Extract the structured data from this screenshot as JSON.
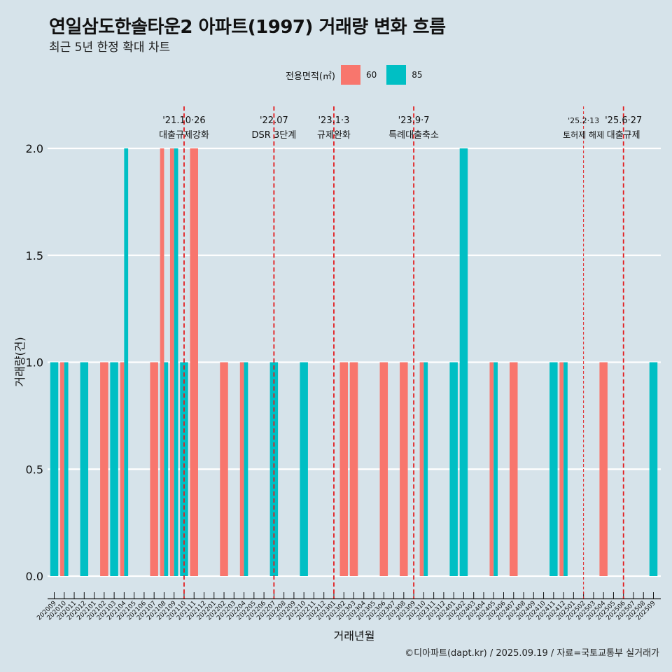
{
  "title": "연일삼도한솔타운2 아파트(1997) 거래량 변화 흐름",
  "subtitle": "최근 5년 한정 확대 차트",
  "caption": "©디아파트(dapt.kr) / 2025.09.19 / 자료=국토교통부 실거래가",
  "legend": {
    "title": "전용면적(㎡)",
    "items": [
      {
        "label": "60",
        "color": "#f8766d"
      },
      {
        "label": "85",
        "color": "#00bfc4"
      }
    ]
  },
  "chart_data": {
    "type": "bar",
    "xlabel": "거래년월",
    "ylabel": "거래량(건)",
    "ylim": [
      0,
      2
    ],
    "yticks": [
      "0.0",
      "0.5",
      "1.0",
      "1.5",
      "2.0"
    ],
    "grid": true,
    "legend_position": "top",
    "categories": [
      "202009",
      "202010",
      "202011",
      "202012",
      "202101",
      "202102",
      "202103",
      "202104",
      "202105",
      "202106",
      "202107",
      "202108",
      "202109",
      "202110",
      "202111",
      "202112",
      "202201",
      "202202",
      "202203",
      "202204",
      "202205",
      "202206",
      "202207",
      "202208",
      "202209",
      "202210",
      "202211",
      "202212",
      "202301",
      "202302",
      "202303",
      "202304",
      "202305",
      "202306",
      "202307",
      "202308",
      "202309",
      "202310",
      "202311",
      "202312",
      "202401",
      "202402",
      "202403",
      "202404",
      "202405",
      "202406",
      "202407",
      "202408",
      "202409",
      "202410",
      "202411",
      "202412",
      "202501",
      "202502",
      "202503",
      "202504",
      "202505",
      "202506",
      "202507",
      "202508",
      "202509"
    ],
    "series": [
      {
        "name": "60",
        "color": "#f8766d",
        "values": [
          0,
          1,
          0,
          0,
          0,
          1,
          0,
          1,
          0,
          0,
          1,
          2,
          2,
          0,
          2,
          0,
          0,
          1,
          0,
          1,
          0,
          0,
          0,
          0,
          0,
          0,
          0,
          0,
          0,
          1,
          1,
          0,
          0,
          1,
          0,
          1,
          0,
          1,
          0,
          0,
          0,
          0,
          0,
          0,
          1,
          0,
          1,
          0,
          0,
          0,
          0,
          1,
          0,
          0,
          0,
          1,
          0,
          0,
          0,
          0,
          0
        ]
      },
      {
        "name": "85",
        "color": "#00bfc4",
        "values": [
          1,
          1,
          0,
          1,
          0,
          0,
          1,
          2,
          0,
          0,
          0,
          1,
          2,
          1,
          0,
          0,
          0,
          0,
          0,
          1,
          0,
          0,
          1,
          0,
          0,
          1,
          0,
          0,
          0,
          0,
          0,
          0,
          0,
          0,
          0,
          0,
          0,
          1,
          0,
          0,
          1,
          2,
          0,
          0,
          1,
          0,
          0,
          0,
          0,
          0,
          1,
          1,
          0,
          0,
          0,
          0,
          0,
          0,
          0,
          0,
          1
        ]
      }
    ],
    "annotations": [
      {
        "month": "202110",
        "date": "'21.10·26",
        "text": "대출규제강화"
      },
      {
        "month": "202207",
        "date": "'22.07",
        "text": "DSR 3단계"
      },
      {
        "month": "202301",
        "date": "'23.1·3",
        "text": "규제완화"
      },
      {
        "month": "202309",
        "date": "'23.9·7",
        "text": "특례대출축소"
      },
      {
        "month": "202502",
        "date": "'25.2·13",
        "text": "토허제 해제"
      },
      {
        "month": "202506",
        "date": "'25.6·27",
        "text": "대출규제"
      }
    ]
  }
}
